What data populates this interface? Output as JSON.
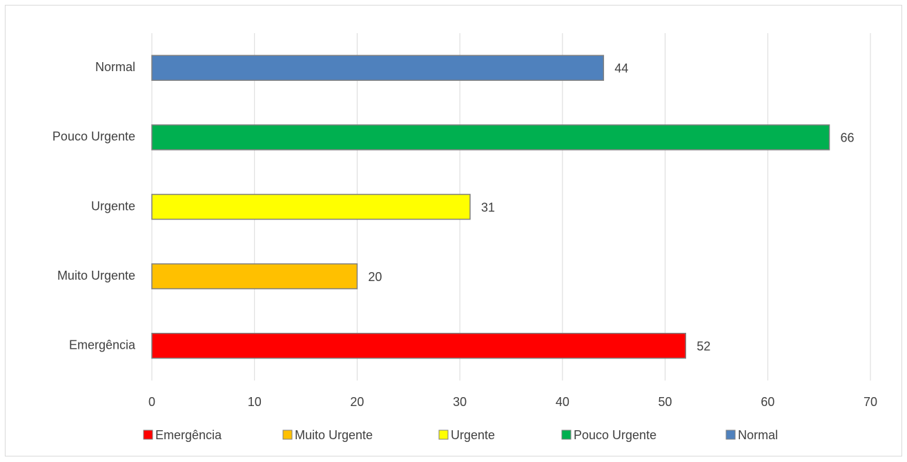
{
  "chart_data": {
    "type": "bar",
    "orientation": "horizontal",
    "categories": [
      "Emergência",
      "Muito Urgente",
      "Urgente",
      "Pouco Urgente",
      "Normal"
    ],
    "values": [
      52,
      20,
      31,
      66,
      44
    ],
    "colors": [
      "#ff0000",
      "#ffc000",
      "#ffff00",
      "#00b050",
      "#4f81bd"
    ],
    "xlim": [
      0,
      70
    ],
    "xticks": [
      0,
      10,
      20,
      30,
      40,
      50,
      60,
      70
    ],
    "grid": true,
    "legend": "bottom"
  }
}
